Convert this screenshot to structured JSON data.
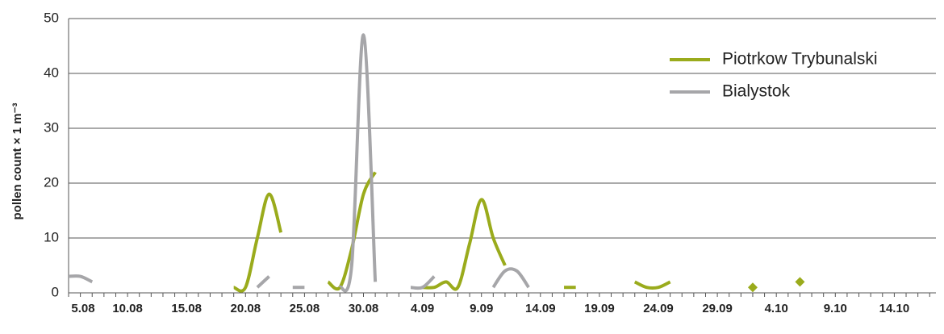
{
  "chart_data": {
    "type": "line",
    "y_label": "pollen count × 1 m⁻³",
    "categories": [
      "5.08",
      null,
      null,
      null,
      null,
      "10.08",
      null,
      null,
      null,
      null,
      "15.08",
      null,
      null,
      null,
      null,
      "20.08",
      null,
      null,
      null,
      null,
      "25.08",
      null,
      null,
      null,
      null,
      "30.08",
      null,
      null,
      null,
      null,
      "4.09",
      null,
      null,
      null,
      null,
      "9.09",
      null,
      null,
      null,
      null,
      "14.09",
      null,
      null,
      null,
      null,
      "19.09",
      null,
      null,
      null,
      null,
      "24.09",
      null,
      null,
      null,
      null,
      "29.09",
      null,
      null,
      null,
      null,
      "4.10",
      null,
      null,
      null,
      null,
      "9.10",
      null,
      null,
      null,
      null,
      "14.10",
      null,
      null,
      null
    ],
    "series": [
      {
        "name": "Piotrkow Trybunalski",
        "color": "#9aab1c",
        "values": [
          null,
          null,
          null,
          null,
          null,
          null,
          null,
          null,
          null,
          null,
          null,
          null,
          null,
          null,
          1,
          1,
          10,
          18,
          11,
          null,
          null,
          null,
          2,
          1,
          8,
          18,
          22,
          null,
          null,
          null,
          1,
          1,
          2,
          1,
          9,
          17,
          10,
          5,
          null,
          null,
          null,
          null,
          1,
          1,
          null,
          null,
          null,
          null,
          2,
          1,
          1,
          2,
          null,
          null,
          null,
          null,
          null,
          null,
          1,
          null,
          null,
          null,
          2,
          null,
          null,
          null,
          null,
          null,
          null,
          null,
          null,
          null,
          null,
          null
        ]
      },
      {
        "name": "Bialystok",
        "color": "#a6a6a9",
        "values": [
          3,
          3,
          2,
          null,
          null,
          null,
          null,
          null,
          null,
          null,
          null,
          null,
          null,
          null,
          null,
          null,
          1,
          3,
          null,
          1,
          1,
          null,
          null,
          1,
          5,
          47,
          2,
          null,
          null,
          1,
          1,
          3,
          null,
          null,
          null,
          null,
          1,
          4,
          4,
          1,
          null,
          null,
          null,
          null,
          null,
          null,
          null,
          null,
          null,
          null,
          null,
          null,
          null,
          null,
          null,
          null,
          null,
          null,
          null,
          null,
          null,
          null,
          null,
          null,
          null,
          null,
          null,
          null,
          null,
          null,
          null,
          null,
          null,
          null
        ]
      }
    ],
    "ylim": [
      0,
      50
    ],
    "yticks": [
      0,
      10,
      20,
      30,
      40,
      50
    ],
    "grid": true,
    "legend": "upper right"
  }
}
